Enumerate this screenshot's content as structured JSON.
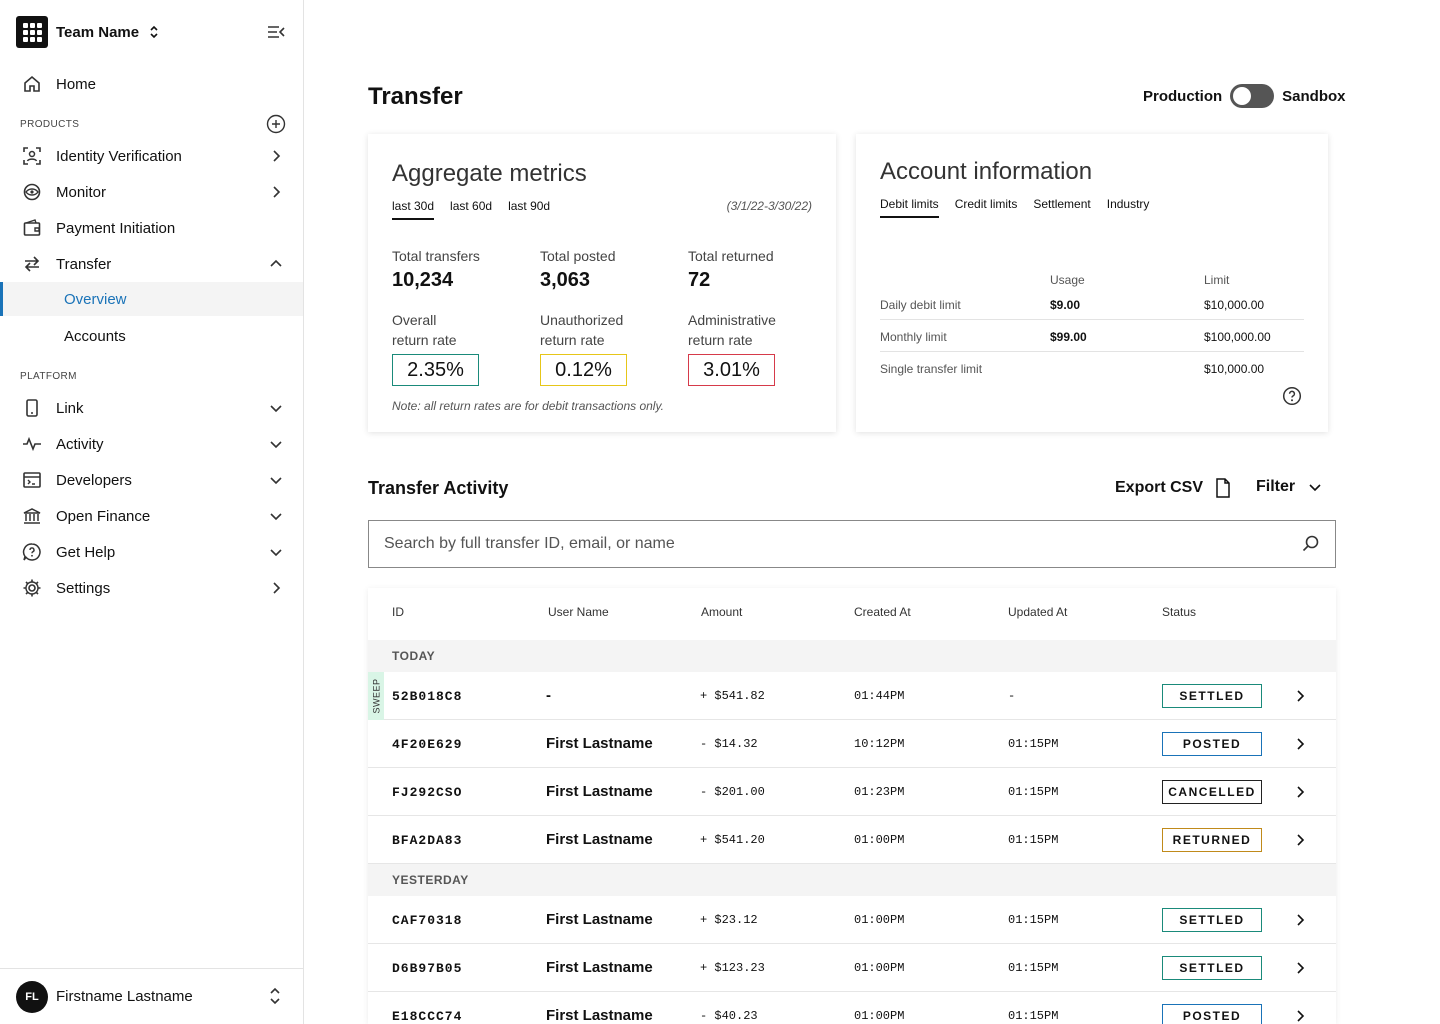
{
  "sidebar": {
    "team_name": "Team Name",
    "home": "Home",
    "products_heading": "PRODUCTS",
    "platform_heading": "PLATFORM",
    "items": {
      "identity": "Identity Verification",
      "monitor": "Monitor",
      "payment": "Payment Initiation",
      "transfer": "Transfer",
      "overview": "Overview",
      "accounts": "Accounts",
      "link": "Link",
      "activity": "Activity",
      "developers": "Developers",
      "open_finance": "Open Finance",
      "get_help": "Get Help",
      "settings": "Settings"
    },
    "user": {
      "initials": "FL",
      "name": "Firstname Lastname"
    }
  },
  "header": {
    "title": "Transfer",
    "env_left": "Production",
    "env_right": "Sandbox",
    "env_toggle_on": false
  },
  "aggregate": {
    "title": "Aggregate metrics",
    "tabs": [
      "last 30d",
      "last 60d",
      "last 90d"
    ],
    "active_tab": "last 30d",
    "range": "(3/1/22-3/30/22)",
    "total_transfers_label": "Total transfers",
    "total_transfers": "10,234",
    "total_posted_label": "Total posted",
    "total_posted": "3,063",
    "total_returned_label": "Total returned",
    "total_returned": "72",
    "overall_label_1": "Overall",
    "overall_label_2": "return rate",
    "overall_rate": "2.35%",
    "unauth_label_1": "Unauthorized",
    "unauth_label_2": "return rate",
    "unauth_rate": "0.12%",
    "admin_label_1": "Administrative",
    "admin_label_2": "return rate",
    "admin_rate": "3.01%",
    "note": "Note: all return rates are for debit transactions only.",
    "colors": {
      "overall": "#1a8a7a",
      "unauth": "#e6c619",
      "admin": "#d63a4a"
    }
  },
  "account": {
    "title": "Account information",
    "tabs": [
      "Debit limits",
      "Credit limits",
      "Settlement",
      "Industry"
    ],
    "active_tab": "Debit limits",
    "col_usage": "Usage",
    "col_limit": "Limit",
    "rows": [
      {
        "label": "Daily debit limit",
        "usage": "$9.00",
        "limit": "$10,000.00"
      },
      {
        "label": "Monthly limit",
        "usage": "$99.00",
        "limit": "$100,000.00"
      },
      {
        "label": "Single transfer limit",
        "usage": "",
        "limit": "$10,000.00"
      }
    ]
  },
  "activity": {
    "title": "Transfer Activity",
    "export": "Export CSV",
    "filter": "Filter",
    "search_placeholder": "Search by full transfer ID, email, or name",
    "columns": {
      "id": "ID",
      "user": "User Name",
      "amount": "Amount",
      "created": "Created At",
      "updated": "Updated At",
      "status": "Status"
    },
    "groups": {
      "today": "TODAY",
      "yesterday": "YESTERDAY"
    },
    "sweep_label": "SWEEP",
    "rows": [
      {
        "id": "52B018C8",
        "user": "-",
        "amount": "+ $541.82",
        "created": "01:44PM",
        "updated": "-",
        "status": "SETTLED"
      },
      {
        "id": "4F20E629",
        "user": "First Lastname",
        "amount": "- $14.32",
        "created": "10:12PM",
        "updated": "01:15PM",
        "status": "POSTED"
      },
      {
        "id": "FJ292CSO",
        "user": "First Lastname",
        "amount": "- $201.00",
        "created": "01:23PM",
        "updated": "01:15PM",
        "status": "CANCELLED"
      },
      {
        "id": "BFA2DA83",
        "user": "First Lastname",
        "amount": "+ $541.20",
        "created": "01:00PM",
        "updated": "01:15PM",
        "status": "RETURNED"
      },
      {
        "id": "CAF70318",
        "user": "First Lastname",
        "amount": "+ $23.12",
        "created": "01:00PM",
        "updated": "01:15PM",
        "status": "SETTLED"
      },
      {
        "id": "D6B97B05",
        "user": "First Lastname",
        "amount": "+ $123.23",
        "created": "01:00PM",
        "updated": "01:15PM",
        "status": "SETTLED"
      },
      {
        "id": "E18CCC74",
        "user": "First Lastname",
        "amount": "- $40.23",
        "created": "01:00PM",
        "updated": "01:15PM",
        "status": "POSTED"
      }
    ],
    "status_colors": {
      "SETTLED": "#1a8a7a",
      "POSTED": "#1a73b8",
      "CANCELLED": "#222222",
      "RETURNED": "#c08a1a"
    }
  }
}
